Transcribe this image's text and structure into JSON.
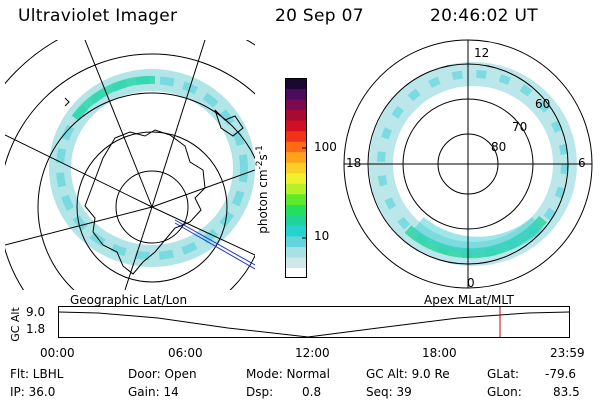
{
  "header": {
    "instrument": "Ultraviolet Imager",
    "date": "20 Sep 07",
    "time": "20:46:02 UT"
  },
  "colorbar": {
    "label": "photon cm",
    "label_sup1": "-2",
    "label_mid": "s",
    "label_sup2": "-1",
    "tick_labels": [
      "100",
      "10"
    ],
    "tick_values": [
      100,
      10
    ],
    "scale": "log",
    "colors": [
      "#ffffff",
      "#cfe8ea",
      "#a9e0e6",
      "#63d5dc",
      "#24d3d0",
      "#1fd49b",
      "#25de5a",
      "#5fea27",
      "#b4f128",
      "#eef12b",
      "#f9cf28",
      "#ffa21a",
      "#ff6b12",
      "#f03216",
      "#d10e23",
      "#a80b32",
      "#7c0a50",
      "#4b0b5e",
      "#1a0830"
    ]
  },
  "geo_panel": {
    "label": "Geographic Lat/Lon"
  },
  "mag_panel": {
    "label": "Apex MLat/MLT",
    "lat_labels": [
      "80",
      "70",
      "60"
    ],
    "mlt_labels": [
      "12",
      "18",
      "6",
      "0"
    ]
  },
  "timeline": {
    "y_axis_label": "GC Alt",
    "y_ticks": [
      "9.0",
      "1.8"
    ],
    "x_ticks": [
      "00:00",
      "06:00",
      "12:00",
      "18:00",
      "23:59"
    ],
    "marker_color": "#cc0000"
  },
  "info": {
    "flt": "Flt: LBHL",
    "ip": "IP: 36.0",
    "door": "Door: Open",
    "gain": "Gain: 14",
    "mode": "Mode: Normal",
    "dsp_label": "Dsp:",
    "dsp_value": "0.8",
    "gcalt": "GC Alt: 9.0 Re",
    "seq": "Seq: 39",
    "glat_label": "GLat:",
    "glat_value": "-79.6",
    "glon_label": "GLon:",
    "glon_value": "83.5"
  }
}
